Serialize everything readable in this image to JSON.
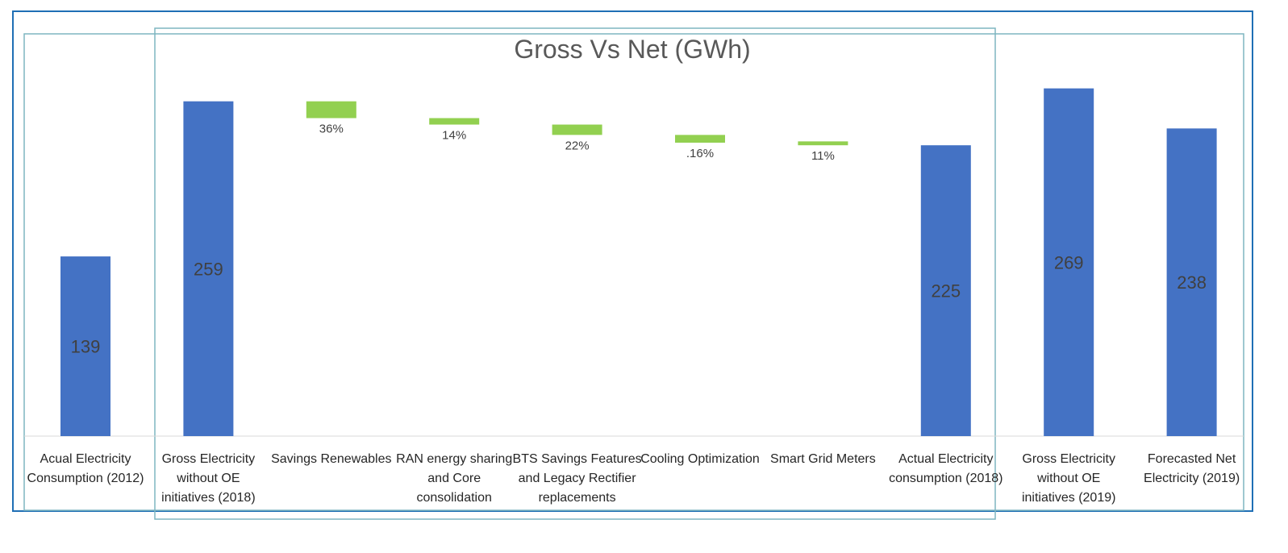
{
  "chart_data": {
    "type": "bar",
    "title": "Gross Vs Net (GWh)",
    "xlabel": "",
    "ylabel": "",
    "grid": false,
    "legend": "none",
    "ylim": [
      0,
      280
    ],
    "colors": {
      "total": "#4472C4",
      "saving": "#92D050",
      "text_dark": "#404040",
      "frame_outer": "#1F6FB5",
      "frame_inner": "#7FB6C0"
    },
    "bars": [
      {
        "category": "Acual Electricity Consumption (2012)",
        "label": "139",
        "kind": "total",
        "base": 0,
        "value": 139
      },
      {
        "category": "Gross Electricity without OE initiatives (2018)",
        "label": "259",
        "kind": "total",
        "base": 0,
        "value": 259
      },
      {
        "category": "Savings Renewables",
        "label": "36%",
        "kind": "saving",
        "base": 246,
        "value": 259
      },
      {
        "category": "RAN energy sharing and Core consolidation",
        "label": "14%",
        "kind": "saving",
        "base": 241,
        "value": 246
      },
      {
        "category": "BTS Savings Features and Legacy Rectifier replacements",
        "label": "22%",
        "kind": "saving",
        "base": 233,
        "value": 241
      },
      {
        "category": "Cooling Optimization",
        "label": ".16%",
        "kind": "saving",
        "base": 227,
        "value": 233
      },
      {
        "category": "Smart Grid Meters",
        "label": "11%",
        "kind": "saving",
        "base": 225,
        "value": 228
      },
      {
        "category": "Actual Electricity consumption (2018)",
        "label": "225",
        "kind": "total",
        "base": 0,
        "value": 225
      },
      {
        "category": "Gross Electricity without OE initiatives (2019)",
        "label": "269",
        "kind": "total",
        "base": 0,
        "value": 269
      },
      {
        "category": "Forecasted Net Electricity (2019)",
        "label": "238",
        "kind": "total",
        "base": 0,
        "value": 238
      }
    ]
  }
}
